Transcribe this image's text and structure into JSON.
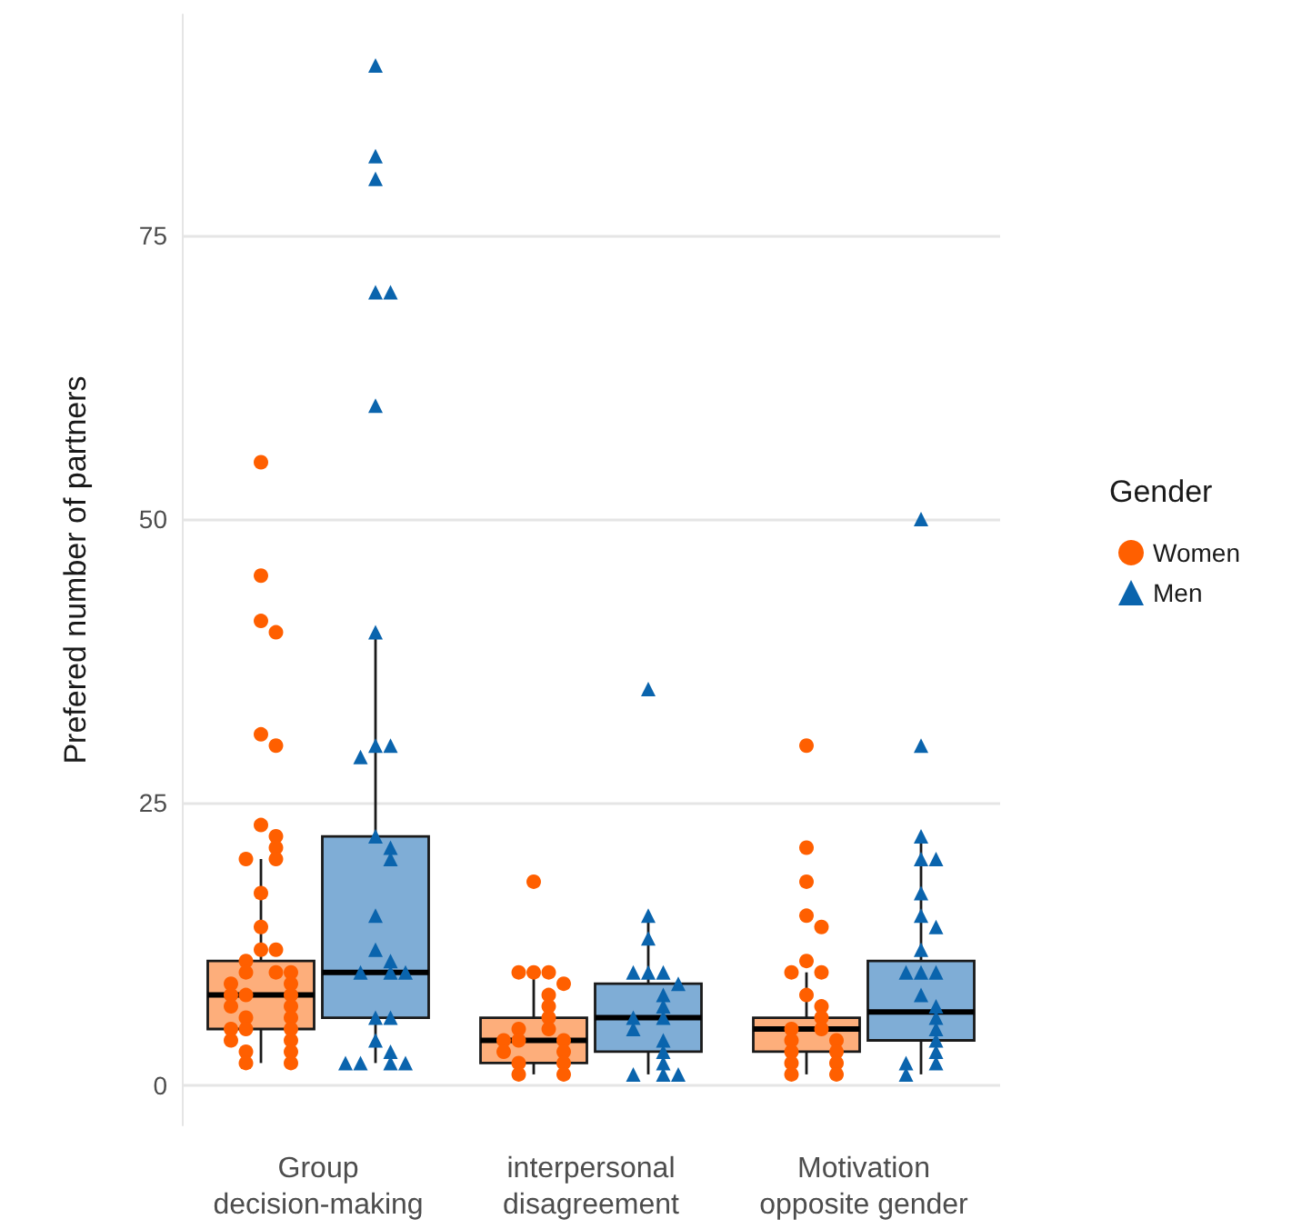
{
  "chart_data": {
    "type": "box",
    "ylabel": "Prefered number of partners",
    "legend_title": "Gender",
    "categories": [
      "Group\ndecision-making",
      "interpersonal\ndisagreement",
      "Motivation\nopposite gender"
    ],
    "ylim": [
      -3.5,
      94.5
    ],
    "yticks": [
      0,
      25,
      50,
      75
    ],
    "grid": "y",
    "legend": "right",
    "series": [
      {
        "color": "#fdae7b",
        "boxes": [
          {
            "low": 2,
            "q1": 5,
            "median": 8,
            "q3": 11,
            "high": 20
          },
          {
            "low": 1,
            "q1": 2,
            "median": 4,
            "q3": 6,
            "high": 10
          },
          {
            "low": 1,
            "q1": 3,
            "median": 5,
            "q3": 6,
            "high": 10
          }
        ]
      },
      {
        "color": "#7fadd6",
        "boxes": [
          {
            "low": 2,
            "q1": 6,
            "median": 10,
            "q3": 22,
            "high": 40
          },
          {
            "low": 1,
            "q1": 3,
            "median": 6,
            "q3": 9,
            "high": 15
          },
          {
            "low": 1,
            "q1": 4,
            "median": 6.5,
            "q3": 11,
            "high": 22
          }
        ]
      },
      {
        "type": "scatter",
        "name": "Women",
        "color": "#ff5f00",
        "marker": "circle",
        "x": [
          "Group\ndecision-making",
          "Group\ndecision-making",
          "Group\ndecision-making",
          "Group\ndecision-making",
          "Group\ndecision-making",
          "Group\ndecision-making",
          "Group\ndecision-making",
          "Group\ndecision-making",
          "Group\ndecision-making",
          "Group\ndecision-making",
          "Group\ndecision-making",
          "Group\ndecision-making",
          "Group\ndecision-making",
          "Group\ndecision-making",
          "Group\ndecision-making",
          "Group\ndecision-making",
          "Group\ndecision-making",
          "Group\ndecision-making",
          "Group\ndecision-making",
          "Group\ndecision-making",
          "Group\ndecision-making",
          "Group\ndecision-making",
          "Group\ndecision-making",
          "Group\ndecision-making",
          "Group\ndecision-making",
          "Group\ndecision-making",
          "Group\ndecision-making",
          "Group\ndecision-making",
          "Group\ndecision-making",
          "Group\ndecision-making",
          "Group\ndecision-making",
          "Group\ndecision-making",
          "Group\ndecision-making",
          "Group\ndecision-making",
          "Group\ndecision-making",
          "Group\ndecision-making",
          "Group\ndecision-making",
          "interpersonal\ndisagreement",
          "interpersonal\ndisagreement",
          "interpersonal\ndisagreement",
          "interpersonal\ndisagreement",
          "interpersonal\ndisagreement",
          "interpersonal\ndisagreement",
          "interpersonal\ndisagreement",
          "interpersonal\ndisagreement",
          "interpersonal\ndisagreement",
          "interpersonal\ndisagreement",
          "interpersonal\ndisagreement",
          "interpersonal\ndisagreement",
          "interpersonal\ndisagreement",
          "interpersonal\ndisagreement",
          "interpersonal\ndisagreement",
          "interpersonal\ndisagreement",
          "interpersonal\ndisagreement",
          "interpersonal\ndisagreement",
          "interpersonal\ndisagreement",
          "Motivation\nopposite gender",
          "Motivation\nopposite gender",
          "Motivation\nopposite gender",
          "Motivation\nopposite gender",
          "Motivation\nopposite gender",
          "Motivation\nopposite gender",
          "Motivation\nopposite gender",
          "Motivation\nopposite gender",
          "Motivation\nopposite gender",
          "Motivation\nopposite gender",
          "Motivation\nopposite gender",
          "Motivation\nopposite gender",
          "Motivation\nopposite gender",
          "Motivation\nopposite gender",
          "Motivation\nopposite gender",
          "Motivation\nopposite gender",
          "Motivation\nopposite gender",
          "Motivation\nopposite gender",
          "Motivation\nopposite gender",
          "Motivation\nopposite gender",
          "Motivation\nopposite gender"
        ],
        "values": [
          55,
          45,
          41,
          40,
          31,
          30,
          23,
          22,
          21,
          20,
          20,
          17,
          14,
          12,
          12,
          11,
          10,
          10,
          10,
          9,
          9,
          8,
          8,
          8,
          7,
          7,
          6,
          6,
          5,
          5,
          5,
          4,
          4,
          3,
          3,
          2,
          2,
          18,
          10,
          10,
          10,
          9,
          8,
          7,
          6,
          5,
          5,
          4,
          4,
          4,
          3,
          3,
          2,
          2,
          1,
          1,
          30,
          21,
          18,
          15,
          14,
          11,
          10,
          10,
          8,
          7,
          6,
          5,
          5,
          4,
          4,
          3,
          3,
          2,
          2,
          1,
          1
        ]
      },
      {
        "type": "scatter",
        "name": "Men",
        "color": "#0a64ad",
        "marker": "triangle",
        "x": [
          "Group\ndecision-making",
          "Group\ndecision-making",
          "Group\ndecision-making",
          "Group\ndecision-making",
          "Group\ndecision-making",
          "Group\ndecision-making",
          "Group\ndecision-making",
          "Group\ndecision-making",
          "Group\ndecision-making",
          "Group\ndecision-making",
          "Group\ndecision-making",
          "Group\ndecision-making",
          "Group\ndecision-making",
          "Group\ndecision-making",
          "Group\ndecision-making",
          "Group\ndecision-making",
          "Group\ndecision-making",
          "Group\ndecision-making",
          "Group\ndecision-making",
          "Group\ndecision-making",
          "Group\ndecision-making",
          "Group\ndecision-making",
          "Group\ndecision-making",
          "Group\ndecision-making",
          "Group\ndecision-making",
          "Group\ndecision-making",
          "Group\ndecision-making",
          "interpersonal\ndisagreement",
          "interpersonal\ndisagreement",
          "interpersonal\ndisagreement",
          "interpersonal\ndisagreement",
          "interpersonal\ndisagreement",
          "interpersonal\ndisagreement",
          "interpersonal\ndisagreement",
          "interpersonal\ndisagreement",
          "interpersonal\ndisagreement",
          "interpersonal\ndisagreement",
          "interpersonal\ndisagreement",
          "interpersonal\ndisagreement",
          "interpersonal\ndisagreement",
          "interpersonal\ndisagreement",
          "interpersonal\ndisagreement",
          "interpersonal\ndisagreement",
          "interpersonal\ndisagreement",
          "interpersonal\ndisagreement",
          "Motivation\nopposite gender",
          "Motivation\nopposite gender",
          "Motivation\nopposite gender",
          "Motivation\nopposite gender",
          "Motivation\nopposite gender",
          "Motivation\nopposite gender",
          "Motivation\nopposite gender",
          "Motivation\nopposite gender",
          "Motivation\nopposite gender",
          "Motivation\nopposite gender",
          "Motivation\nopposite gender",
          "Motivation\nopposite gender",
          "Motivation\nopposite gender",
          "Motivation\nopposite gender",
          "Motivation\nopposite gender",
          "Motivation\nopposite gender",
          "Motivation\nopposite gender",
          "Motivation\nopposite gender",
          "Motivation\nopposite gender",
          "Motivation\nopposite gender",
          "Motivation\nopposite gender"
        ],
        "values": [
          90,
          82,
          80,
          70,
          70,
          60,
          40,
          30,
          30,
          29,
          22,
          21,
          20,
          15,
          12,
          11,
          10,
          10,
          10,
          6,
          6,
          4,
          3,
          2,
          2,
          2,
          2,
          35,
          15,
          13,
          10,
          10,
          10,
          9,
          8,
          7,
          6,
          6,
          5,
          4,
          3,
          2,
          1,
          1,
          1,
          50,
          30,
          22,
          20,
          20,
          17,
          15,
          14,
          12,
          10,
          10,
          10,
          8,
          7,
          6,
          5,
          4,
          3,
          2,
          2,
          1
        ]
      }
    ]
  }
}
